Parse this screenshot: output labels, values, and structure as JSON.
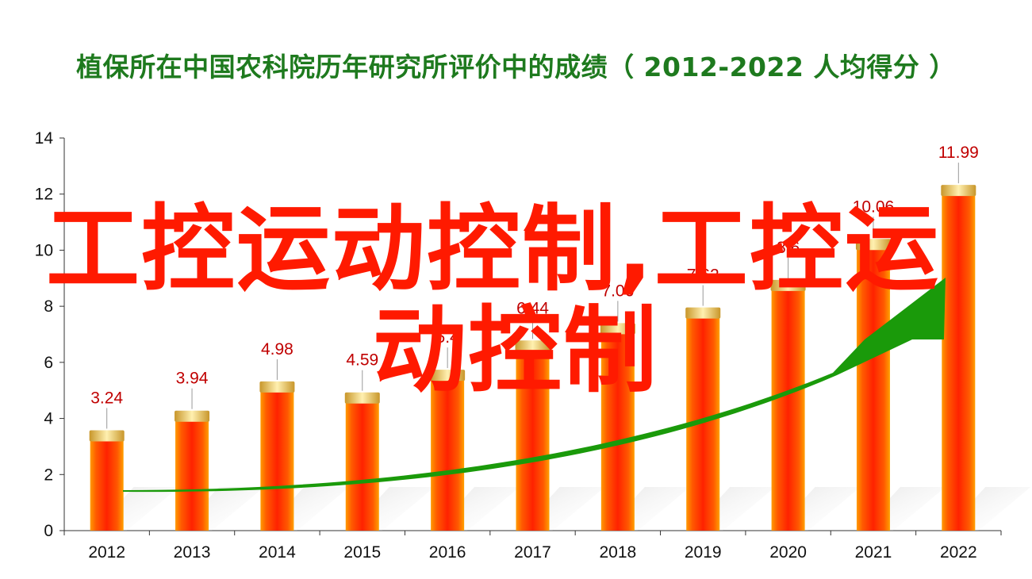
{
  "chart_data": {
    "type": "bar",
    "title": "植保所在中国农科院历年研究所评价中的成绩（ 2012-2022 人均得分 ）",
    "categories": [
      "2012",
      "2013",
      "2014",
      "2015",
      "2016",
      "2017",
      "2018",
      "2019",
      "2020",
      "2021",
      "2022"
    ],
    "values": [
      3.24,
      3.94,
      4.98,
      4.59,
      5.4,
      6.44,
      7.06,
      7.62,
      8.6,
      10.06,
      11.99
    ],
    "value_labels": [
      "3.24",
      "3.94",
      "4.98",
      "4.59",
      "5.4",
      "6.44",
      "7.06",
      "7.62",
      "8.6",
      "10.06",
      "11.99"
    ],
    "ylim": [
      0,
      14
    ],
    "yticks": [
      0,
      2,
      4,
      6,
      8,
      10,
      12,
      14
    ],
    "grid": false,
    "legend": "none",
    "colors": {
      "bar_core": "#ff2a00",
      "bar_edge": "#ff9a00",
      "bar_cap": "#e9c05a",
      "label": "#c00000",
      "trend_arrow": "#1a9a0a",
      "title": "#1e7a1e"
    }
  },
  "watermark": {
    "line1": "工控运动控制,工控运",
    "line2": "动控制"
  }
}
